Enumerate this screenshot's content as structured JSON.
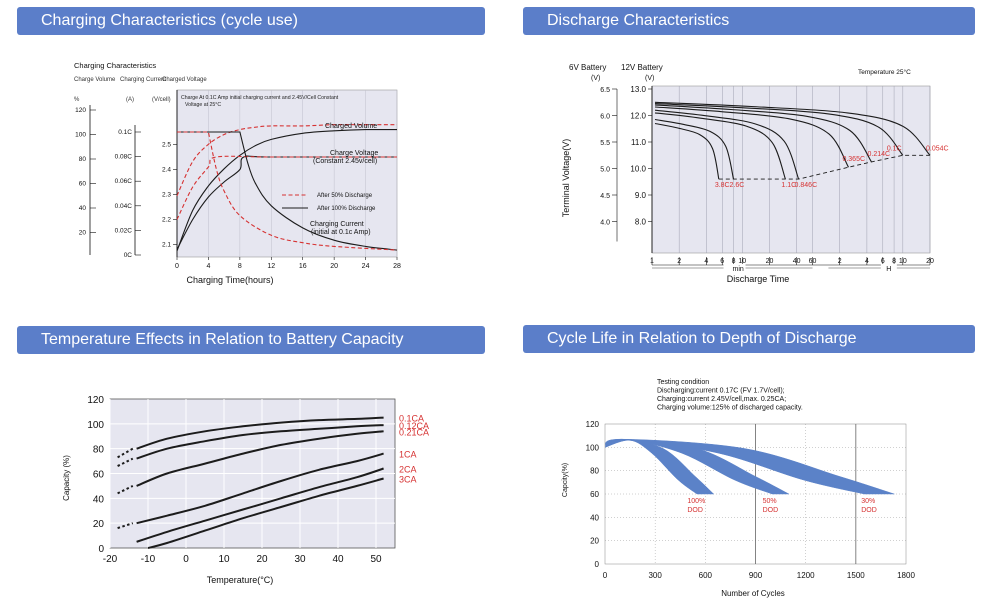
{
  "headers": {
    "charging": "Charging Characteristics (cycle use)",
    "discharge": "Discharge Characteristics",
    "temperature": "Temperature Effects in Relation to Battery Capacity",
    "cycle": "Cycle Life in Relation to Depth of Discharge"
  },
  "colors": {
    "header_bg": "#5b7ec9",
    "plot_bg": "#e6e6f0",
    "red": "#d63232",
    "curve": "#1c1c1c",
    "cycle_band": "#5b82c8"
  },
  "chart_data": [
    {
      "type": "line",
      "id": "charging",
      "title": "Charging Characteristics",
      "axis_headers": {
        "capacity": "Charge Volume",
        "current": "Charging Current",
        "voltage": "Charged Voltage"
      },
      "axis_units": {
        "capacity": "%",
        "current": "(A)",
        "voltage": "(V/cell)"
      },
      "capacity_ticks": [
        "120",
        "100",
        "80",
        "60",
        "40",
        "20"
      ],
      "current_ticks": [
        "0.1C",
        "0.08C",
        "0.06C",
        "0.04C",
        "0.02C",
        "0C"
      ],
      "voltage_ticks": [
        "2.5",
        "2.4",
        "2.3",
        "2.2",
        "2.1"
      ],
      "x_ticks": [
        "0",
        "4",
        "8",
        "12",
        "16",
        "20",
        "24",
        "28"
      ],
      "xlabel": "Charging Time(hours)",
      "xlim": [
        0,
        28
      ],
      "note_line1": "Charge At 0.1C Amp initial charging current and 2.45V/Cell Constant",
      "note_line2": "Voltage  at 25°C",
      "annotations": {
        "charged_volume": "Charged Volume",
        "charge_voltage_1": "Charge Voltage",
        "charge_voltage_2": "(Constant 2.45v/cell)",
        "charging_current_1": "Charging Current",
        "charging_current_2": "(initial at 0.1c Amp)"
      },
      "legend": [
        "After 50% Discharge",
        "After 100% Discharge"
      ],
      "series": [
        {
          "name": "After 100% Discharge",
          "kind": "charged-volume",
          "x": [
            0,
            2,
            4,
            6,
            8,
            10,
            12,
            16,
            20,
            24,
            28
          ],
          "y": [
            5,
            38,
            58,
            72,
            83,
            91,
            96,
            101,
            103,
            104,
            104
          ]
        },
        {
          "name": "After 50% Discharge",
          "kind": "charged-volume",
          "x": [
            0,
            2,
            4,
            6,
            8,
            10,
            12,
            16,
            20,
            24,
            28
          ],
          "y": [
            50,
            78,
            92,
            100,
            104,
            106,
            107,
            107,
            108,
            108,
            108
          ]
        },
        {
          "name": "After 100% Discharge",
          "kind": "charge-voltage",
          "x": [
            0,
            2,
            4,
            6,
            8,
            8.5,
            12,
            28
          ],
          "y": [
            2.08,
            2.2,
            2.29,
            2.35,
            2.4,
            2.45,
            2.45,
            2.45
          ]
        },
        {
          "name": "After 50% Discharge",
          "kind": "charge-voltage",
          "x": [
            0,
            2,
            4,
            5,
            12,
            28
          ],
          "y": [
            2.2,
            2.33,
            2.41,
            2.45,
            2.45,
            2.45
          ]
        },
        {
          "name": "After 100% Discharge",
          "kind": "charging-current",
          "x": [
            0,
            8,
            9,
            10,
            12,
            16,
            20,
            24,
            28
          ],
          "y": [
            0.1,
            0.1,
            0.075,
            0.058,
            0.04,
            0.022,
            0.012,
            0.007,
            0.004
          ]
        },
        {
          "name": "After 50% Discharge",
          "kind": "charging-current",
          "x": [
            0,
            4,
            5,
            6,
            8,
            12,
            16,
            20,
            28
          ],
          "y": [
            0.1,
            0.1,
            0.07,
            0.052,
            0.032,
            0.016,
            0.01,
            0.007,
            0.004
          ]
        }
      ]
    },
    {
      "type": "line",
      "id": "discharge",
      "axis_6v_label": "6V Battery",
      "axis_12v_label": "12V Battery",
      "unit_6v": "(V)",
      "unit_12v": "(V)",
      "temperature_note": "Temperature 25°C",
      "ylabel": "Terminal Voltage(V)",
      "xlabel": "Discharge Time",
      "y6_ticks": [
        "6.5",
        "6.0",
        "5.5",
        "5.0",
        "4.5",
        "4.0"
      ],
      "y12_ticks": [
        "13.0",
        "12.0",
        "11.0",
        "10.0",
        "9.0",
        "8.0"
      ],
      "x_ticks_min": [
        "1",
        "2",
        "4",
        "6",
        "8",
        "10",
        "20",
        "40",
        "60"
      ],
      "x_ticks_h": [
        "2",
        "4",
        "6",
        "8",
        "10",
        "20"
      ],
      "unit_min": "min",
      "unit_h": "H",
      "rates": [
        {
          "name": "3.8C",
          "minutes": 5.5,
          "start_v": 11.7,
          "end_v": 9.6
        },
        {
          "name": "2.6C",
          "minutes": 8,
          "start_v": 11.85,
          "end_v": 9.6
        },
        {
          "name": "1.1C",
          "minutes": 30,
          "start_v": 12.1,
          "end_v": 9.6
        },
        {
          "name": "0.846C",
          "minutes": 42,
          "start_v": 12.2,
          "end_v": 9.6
        },
        {
          "name": "0.365C",
          "minutes": 150,
          "start_v": 12.32,
          "end_v": 10.05
        },
        {
          "name": "0.214C",
          "minutes": 270,
          "start_v": 12.4,
          "end_v": 10.25
        },
        {
          "name": "0.1C",
          "minutes": 600,
          "start_v": 12.45,
          "end_v": 10.5
        },
        {
          "name": "0.054C",
          "minutes": 1200,
          "start_v": 12.5,
          "end_v": 10.5
        }
      ]
    },
    {
      "type": "line",
      "id": "temperature",
      "xlabel": "Temperature(°C)",
      "ylabel": "Capacity (%)",
      "xlim": [
        -20,
        55
      ],
      "ylim": [
        0,
        120
      ],
      "x_ticks": [
        "-20",
        "-10",
        "0",
        "10",
        "20",
        "30",
        "40",
        "50"
      ],
      "y_ticks": [
        "120",
        "100",
        "80",
        "60",
        "40",
        "20",
        "0"
      ],
      "series": [
        {
          "name": "0.1CA",
          "x": [
            -13,
            -5,
            5,
            15,
            25,
            35,
            45,
            52
          ],
          "y": [
            80,
            88,
            94,
            98,
            101,
            103,
            104,
            105
          ]
        },
        {
          "name": "0.12CA",
          "x": [
            -13,
            -5,
            5,
            15,
            25,
            35,
            45,
            52
          ],
          "y": [
            72,
            80,
            86,
            91,
            94,
            96,
            98,
            99
          ]
        },
        {
          "name": "0.21CA",
          "x": [
            -13,
            -5,
            5,
            15,
            25,
            35,
            45,
            52
          ],
          "y": [
            50,
            60,
            68,
            76,
            83,
            88,
            92,
            94
          ]
        },
        {
          "name": "1CA",
          "x": [
            -13,
            -5,
            5,
            15,
            25,
            35,
            45,
            52
          ],
          "y": [
            20,
            26,
            34,
            44,
            54,
            63,
            70,
            76
          ]
        },
        {
          "name": "2CA",
          "x": [
            -13,
            -5,
            5,
            15,
            25,
            35,
            45,
            52
          ],
          "y": [
            5,
            13,
            22,
            31,
            40,
            49,
            57,
            64
          ]
        },
        {
          "name": "3CA",
          "x": [
            -10,
            -5,
            5,
            15,
            25,
            35,
            45,
            52
          ],
          "y": [
            0,
            4,
            14,
            24,
            33,
            42,
            50,
            56
          ]
        }
      ],
      "dashed_stubs": [
        {
          "series": "0.1CA",
          "y": [
            73,
            80
          ]
        },
        {
          "series": "0.12CA",
          "y": [
            66,
            72
          ]
        },
        {
          "series": "0.21CA",
          "y": [
            44,
            50
          ]
        },
        {
          "series": "1CA",
          "y": [
            16,
            20
          ]
        }
      ]
    },
    {
      "type": "area",
      "id": "cycle",
      "test_lines": [
        "Testing condition",
        "Discharging:current 0.17C (FV 1.7V/cell);",
        "Charging:current 2.45V/cell,max. 0.25CA;",
        "Charging volume:125% of discharged capacity."
      ],
      "xlabel": "Number of Cycles",
      "ylabel": "Capcity(%)",
      "xlim": [
        0,
        1800
      ],
      "ylim": [
        0,
        120
      ],
      "x_ticks": [
        "0",
        "300",
        "600",
        "900",
        "1200",
        "1500",
        "1800"
      ],
      "y_ticks": [
        "120",
        "100",
        "80",
        "60",
        "40",
        "20",
        "0"
      ],
      "series": [
        {
          "name": "100% DOD",
          "label_line1": "100%",
          "label_line2": "DOD",
          "x_end": [
            550,
            650
          ],
          "peak": 107
        },
        {
          "name": "50% DOD",
          "label_line1": "50%",
          "label_line2": "DOD",
          "x_end": [
            1000,
            1100
          ],
          "peak": 107
        },
        {
          "name": "30% DOD",
          "label_line1": "30%",
          "label_line2": "DOD",
          "x_end": [
            1550,
            1730
          ],
          "peak": 107
        }
      ]
    }
  ]
}
